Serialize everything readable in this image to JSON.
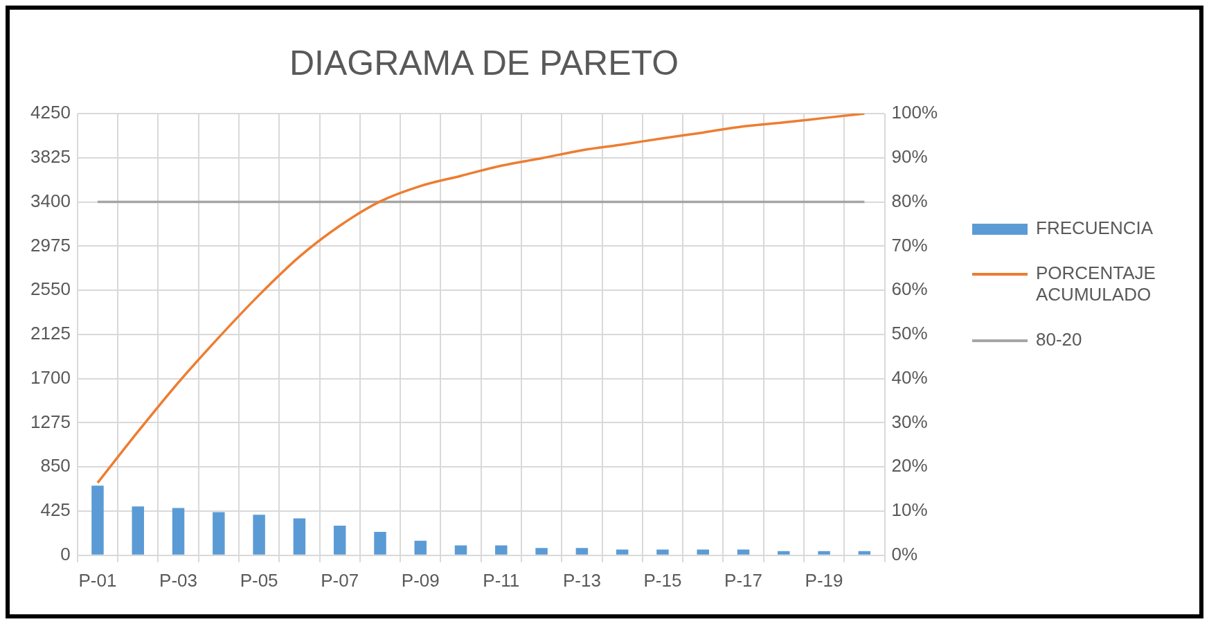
{
  "chart_data": {
    "type": "bar",
    "title": "DIAGRAMA DE PARETO",
    "categories": [
      "P-01",
      null,
      "P-03",
      null,
      "P-05",
      null,
      "P-07",
      null,
      "P-09",
      null,
      "P-11",
      null,
      "P-13",
      null,
      "P-15",
      null,
      "P-17",
      null,
      "P-19",
      null
    ],
    "series": [
      {
        "name": "FRECUENCIA",
        "color": "#5b9bd5",
        "values": [
          670,
          470,
          455,
          415,
          390,
          355,
          285,
          225,
          140,
          95,
          95,
          70,
          70,
          55,
          55,
          55,
          55,
          40,
          40,
          40
        ]
      },
      {
        "name": "PORCENTAJE ACUMULADO",
        "type": "line",
        "axis": "y2",
        "color": "#ed7d31",
        "values": [
          16.4,
          28.0,
          39.1,
          49.3,
          58.9,
          67.6,
          74.6,
          80.1,
          83.6,
          85.9,
          88.2,
          89.9,
          91.7,
          93.0,
          94.4,
          95.7,
          97.1,
          98.0,
          99.0,
          100
        ]
      },
      {
        "name": "80-20",
        "type": "line",
        "axis": "y2",
        "color": "#a5a5a5",
        "values": [
          80,
          80,
          80,
          80,
          80,
          80,
          80,
          80,
          80,
          80,
          80,
          80,
          80,
          80,
          80,
          80,
          80,
          80,
          80,
          80
        ]
      }
    ],
    "ylim": [
      0,
      4250
    ],
    "yticks": [
      0,
      425,
      850,
      1275,
      1700,
      2125,
      2550,
      2975,
      3400,
      3825,
      4250
    ],
    "y2lim": [
      0,
      100
    ],
    "y2ticks": [
      {
        "value": 0,
        "label": "0%"
      },
      {
        "value": 10,
        "label": "10%"
      },
      {
        "value": 20,
        "label": "20%"
      },
      {
        "value": 30,
        "label": "30%"
      },
      {
        "value": 40,
        "label": "40%"
      },
      {
        "value": 50,
        "label": "50%"
      },
      {
        "value": 60,
        "label": "60%"
      },
      {
        "value": 70,
        "label": "70%"
      },
      {
        "value": 80,
        "label": "80%"
      },
      {
        "value": 90,
        "label": "90%"
      },
      {
        "value": 100,
        "label": "100%"
      }
    ],
    "grid": true,
    "legend": "right",
    "marker": "none"
  }
}
